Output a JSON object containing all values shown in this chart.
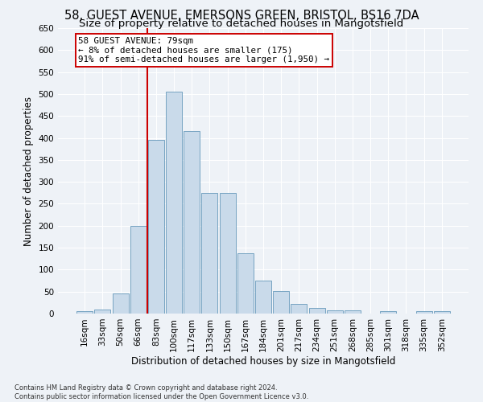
{
  "title_line1": "58, GUEST AVENUE, EMERSONS GREEN, BRISTOL, BS16 7DA",
  "title_line2": "Size of property relative to detached houses in Mangotsfield",
  "xlabel": "Distribution of detached houses by size in Mangotsfield",
  "ylabel": "Number of detached properties",
  "bar_color": "#c9daea",
  "bar_edge_color": "#6699bb",
  "categories": [
    "16sqm",
    "33sqm",
    "50sqm",
    "66sqm",
    "83sqm",
    "100sqm",
    "117sqm",
    "133sqm",
    "150sqm",
    "167sqm",
    "184sqm",
    "201sqm",
    "217sqm",
    "234sqm",
    "251sqm",
    "268sqm",
    "285sqm",
    "301sqm",
    "318sqm",
    "335sqm",
    "352sqm"
  ],
  "values": [
    5,
    10,
    45,
    200,
    395,
    505,
    415,
    275,
    275,
    138,
    75,
    52,
    22,
    12,
    8,
    8,
    0,
    5,
    0,
    5,
    5
  ],
  "vline_index": 4,
  "vline_color": "#cc0000",
  "annotation_text": "58 GUEST AVENUE: 79sqm\n← 8% of detached houses are smaller (175)\n91% of semi-detached houses are larger (1,950) →",
  "annotation_box_color": "#ffffff",
  "annotation_box_edge": "#cc0000",
  "ylim_max": 650,
  "yticks": [
    0,
    50,
    100,
    150,
    200,
    250,
    300,
    350,
    400,
    450,
    500,
    550,
    600,
    650
  ],
  "footer_line1": "Contains HM Land Registry data © Crown copyright and database right 2024.",
  "footer_line2": "Contains public sector information licensed under the Open Government Licence v3.0.",
  "bg_color": "#eef2f7",
  "plot_bg_color": "#eef2f7",
  "grid_color": "#ffffff",
  "title_fontsize": 10.5,
  "subtitle_fontsize": 9.5,
  "tick_fontsize": 7.5,
  "label_fontsize": 8.5,
  "footer_fontsize": 6.0
}
